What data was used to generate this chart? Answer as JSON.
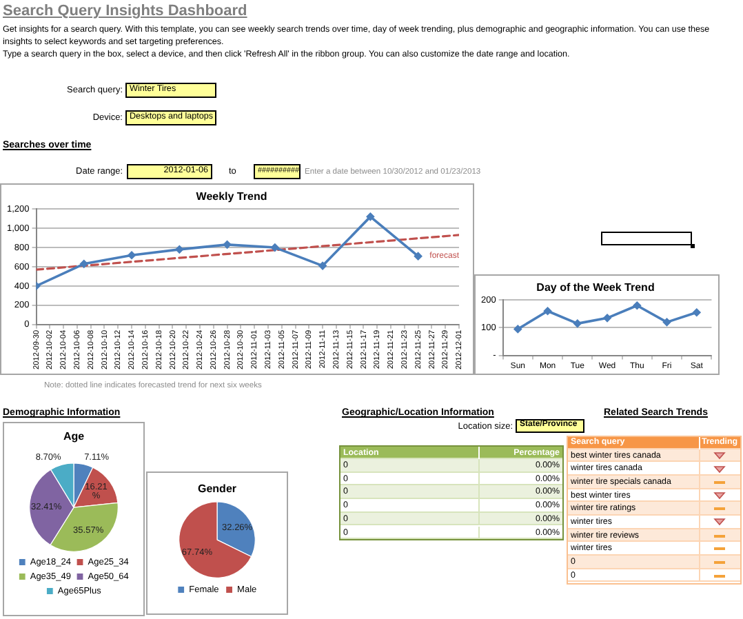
{
  "chart_data": [
    {
      "type": "other",
      "title": "Search Query Insights Dashboard",
      "annotations": [
        "Get insights for a search query. With this template, you can see weekly search trends over time, day of week trending, plus demographic and geographic information. You can use these insights to select keywords and set targeting preferences.",
        "Type a search query in the box, select a device, and then click 'Refresh All' in the ribbon group. You can also customize the date range and location.",
        "Search query:",
        "Winter Tires",
        "Device:",
        "Desktops and laptops"
      ]
    },
    {
      "type": "line",
      "title": "Weekly Trend",
      "annotations": [
        "Searches over time",
        "Date range:",
        "2012-01-06",
        "to",
        "##########",
        "Enter a date between 10/30/2012 and 01/23/2013",
        "Note: dotted line indicates forecasted trend for next six weeks"
      ],
      "x": [
        "2012-09-30",
        "2012-10-07",
        "2012-10-14",
        "2012-10-21",
        "2012-10-28",
        "2012-11-04",
        "2012-11-11",
        "2012-11-18",
        "2012-11-25"
      ],
      "series": [
        {
          "color": "#4a7ebb",
          "values": [
            400,
            630,
            720,
            780,
            830,
            800,
            610,
            1120,
            710
          ]
        },
        {
          "name": "forecast",
          "type": "line",
          "x": [
            "2012-09-30",
            "2012-12-01"
          ],
          "values": [
            570,
            930
          ],
          "color": "#c0504d",
          "line_style": "dashed",
          "marker": "none"
        }
      ],
      "xlim": [
        "2012-09-30",
        "2012-12-01"
      ],
      "xticks": [
        "2012-09-30",
        "2012-10-02",
        "2012-10-04",
        "2012-10-06",
        "2012-10-08",
        "2012-10-10",
        "2012-10-12",
        "2012-10-14",
        "2012-10-16",
        "2012-10-18",
        "2012-10-20",
        "2012-10-22",
        "2012-10-24",
        "2012-10-26",
        "2012-10-28",
        "2012-10-30",
        "2012-11-01",
        "2012-11-03",
        "2012-11-05",
        "2012-11-07",
        "2012-11-09",
        "2012-11-11",
        "2012-11-13",
        "2012-11-15",
        "2012-11-17",
        "2012-11-19",
        "2012-11-21",
        "2012-11-23",
        "2012-11-25",
        "2012-11-27",
        "2012-11-29",
        "2012-12-01"
      ],
      "ylim": [
        0,
        1200
      ],
      "yticks": [
        0,
        200,
        400,
        600,
        800,
        {
          "value": 1000,
          "label": "1,000"
        },
        {
          "value": 1200,
          "label": "1,200"
        }
      ],
      "grid": "y",
      "marker": "diamond"
    },
    {
      "type": "line",
      "title": "Day of the Week Trend",
      "categories": [
        "Sun",
        "Mon",
        "Tue",
        "Wed",
        "Thu",
        "Fri",
        "Sat"
      ],
      "values": [
        95,
        160,
        115,
        135,
        180,
        120,
        155
      ],
      "color": "#4a7ebb",
      "ylim": [
        0,
        200
      ],
      "yticks": [
        {
          "value": 0,
          "label": "-"
        },
        100,
        200
      ],
      "grid": "y",
      "marker": "diamond"
    },
    {
      "type": "pie",
      "title": "Age",
      "annotations": [
        "Demographic Information"
      ],
      "categories": [
        "Age18_24",
        "Age25_34",
        "Age35_49",
        "Age50_64",
        "Age65Plus"
      ],
      "values": [
        7.11,
        16.21,
        35.57,
        32.41,
        8.7
      ],
      "colors": [
        "#4f81bd",
        "#c0504d",
        "#9bbb59",
        "#8064a2",
        "#4bacc6"
      ],
      "value_labels": [
        "7.11%",
        "16.21%",
        "35.57%",
        "32.41%",
        "8.70%"
      ],
      "legend": "bottom"
    },
    {
      "type": "pie",
      "title": "Gender",
      "categories": [
        "Female",
        "Male"
      ],
      "values": [
        32.26,
        67.74
      ],
      "colors": [
        "#4f81bd",
        "#c0504d"
      ],
      "value_labels": [
        "32.26%",
        "67.74%"
      ],
      "legend": "bottom"
    },
    {
      "type": "other",
      "title": "Geographic/Location Information",
      "annotations": [
        "Location size:",
        "State/Province",
        "Location",
        "Percentage",
        "0",
        "0.00%",
        "0",
        "0.00%",
        "0",
        "0.00%",
        "0",
        "0.00%",
        "0",
        "0.00%",
        "0",
        "0.00%"
      ]
    },
    {
      "type": "other",
      "title": "Related Search Trends",
      "annotations": [
        "Search query",
        "Trending",
        "best winter tires canada",
        "winter tires canada",
        "winter tire specials canada",
        "best winter tires",
        "winter tire ratings",
        "winter tires",
        "winter tire reviews",
        "winter tires",
        "0",
        "0"
      ]
    }
  ]
}
